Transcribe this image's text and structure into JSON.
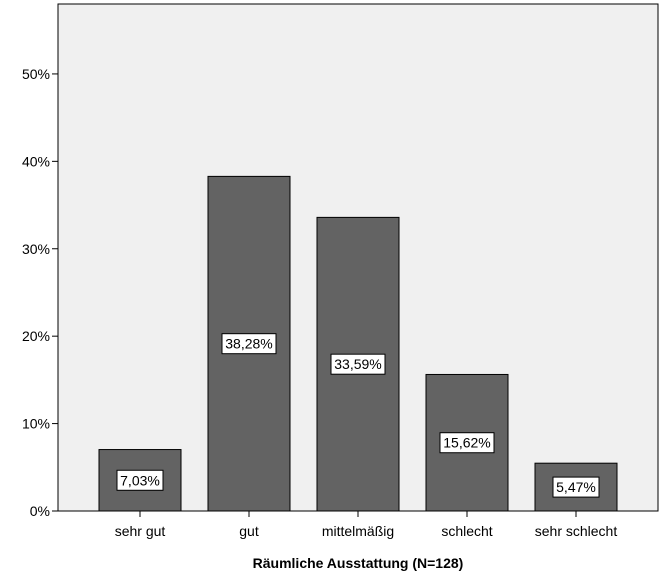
{
  "chart_data": {
    "type": "bar",
    "categories": [
      "sehr gut",
      "gut",
      "mittelmäßig",
      "schlecht",
      "sehr schlecht"
    ],
    "values": [
      7.03,
      38.28,
      33.59,
      15.62,
      5.47
    ],
    "data_labels": [
      "7,03%",
      "38,28%",
      "33,59%",
      "15,62%",
      "5,47%"
    ],
    "xlabel": "Räumliche Ausstattung (N=128)",
    "ylabel": "",
    "ylim": [
      0,
      58
    ],
    "yticks": [
      0,
      10,
      20,
      30,
      40,
      50
    ],
    "ytick_labels": [
      "0%",
      "10%",
      "20%",
      "30%",
      "40%",
      "50%"
    ],
    "grid": false,
    "colors": {
      "bar": "#636363",
      "plot_background": "#f0f0f0",
      "bar_edge": "#000000"
    }
  }
}
